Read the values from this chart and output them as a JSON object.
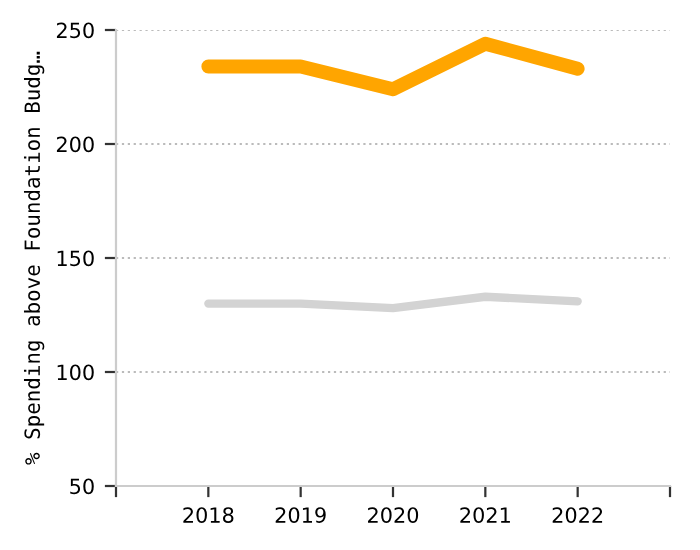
{
  "chart_data": {
    "type": "line",
    "ylabel": "% Spending above Foundation Budg…",
    "x": [
      2018,
      2019,
      2020,
      2021,
      2022
    ],
    "series": [
      {
        "color": "#ffa500",
        "values": [
          234,
          234,
          224,
          244,
          233
        ]
      },
      {
        "color": "#d3d3d3",
        "values": [
          130,
          130,
          128,
          133,
          131
        ]
      }
    ],
    "xlim": [
      2017,
      2023
    ],
    "xticks": [
      {
        "value": 2017,
        "label": null
      },
      2018,
      2019,
      2020,
      2021,
      2022,
      {
        "value": 2023,
        "label": null
      }
    ],
    "ylim": [
      50,
      250
    ],
    "yticks": [
      50,
      100,
      150,
      200,
      250
    ],
    "grid": "y",
    "marker": "none",
    "line_style": "solid"
  }
}
